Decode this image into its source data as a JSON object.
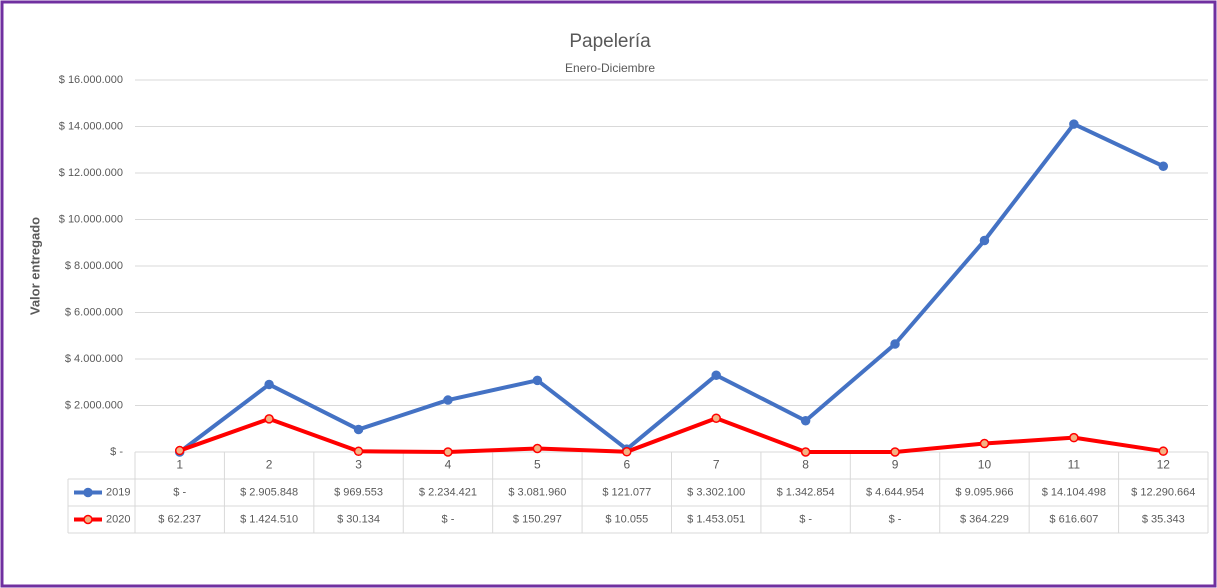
{
  "chart_data": {
    "type": "line",
    "title": "Papelería",
    "subtitle": "Enero-Diciembre",
    "y_label": "Valor entregado",
    "categories": [
      "1",
      "2",
      "3",
      "4",
      "5",
      "6",
      "7",
      "8",
      "9",
      "10",
      "11",
      "12"
    ],
    "series": [
      {
        "name": "2019",
        "color": "#4472c4",
        "marker_fill": "#4472c4",
        "values": [
          0,
          2905848,
          969553,
          2234421,
          3081960,
          121077,
          3302100,
          1342854,
          4644954,
          9095966,
          14104498,
          12290664
        ],
        "value_labels": [
          "$ -",
          "$ 2.905.848",
          "$ 969.553",
          "$ 2.234.421",
          "$ 3.081.960",
          "$ 121.077",
          "$ 3.302.100",
          "$ 1.342.854",
          "$ 4.644.954",
          "$ 9.095.966",
          "$ 14.104.498",
          "$ 12.290.664"
        ]
      },
      {
        "name": "2020",
        "color": "#ff0000",
        "marker_fill": "#f4b183",
        "values": [
          62237,
          1424510,
          30134,
          0,
          150297,
          10055,
          1453051,
          0,
          0,
          364229,
          616607,
          35343
        ],
        "value_labels": [
          "$ 62.237",
          "$ 1.424.510",
          "$ 30.134",
          "$ -",
          "$ 150.297",
          "$ 10.055",
          "$ 1.453.051",
          "$ -",
          "$ -",
          "$ 364.229",
          "$ 616.607",
          "$ 35.343"
        ]
      }
    ],
    "ylim": [
      0,
      16000000
    ],
    "yticks": [
      {
        "value": 0,
        "label": "$ -"
      },
      {
        "value": 2000000,
        "label": "$ 2.000.000"
      },
      {
        "value": 4000000,
        "label": "$ 4.000.000"
      },
      {
        "value": 6000000,
        "label": "$ 6.000.000"
      },
      {
        "value": 8000000,
        "label": "$ 8.000.000"
      },
      {
        "value": 10000000,
        "label": "$ 10.000.000"
      },
      {
        "value": 12000000,
        "label": "$ 12.000.000"
      },
      {
        "value": 14000000,
        "label": "$ 14.000.000"
      },
      {
        "value": 16000000,
        "label": "$ 16.000.000"
      }
    ],
    "grid": true
  }
}
